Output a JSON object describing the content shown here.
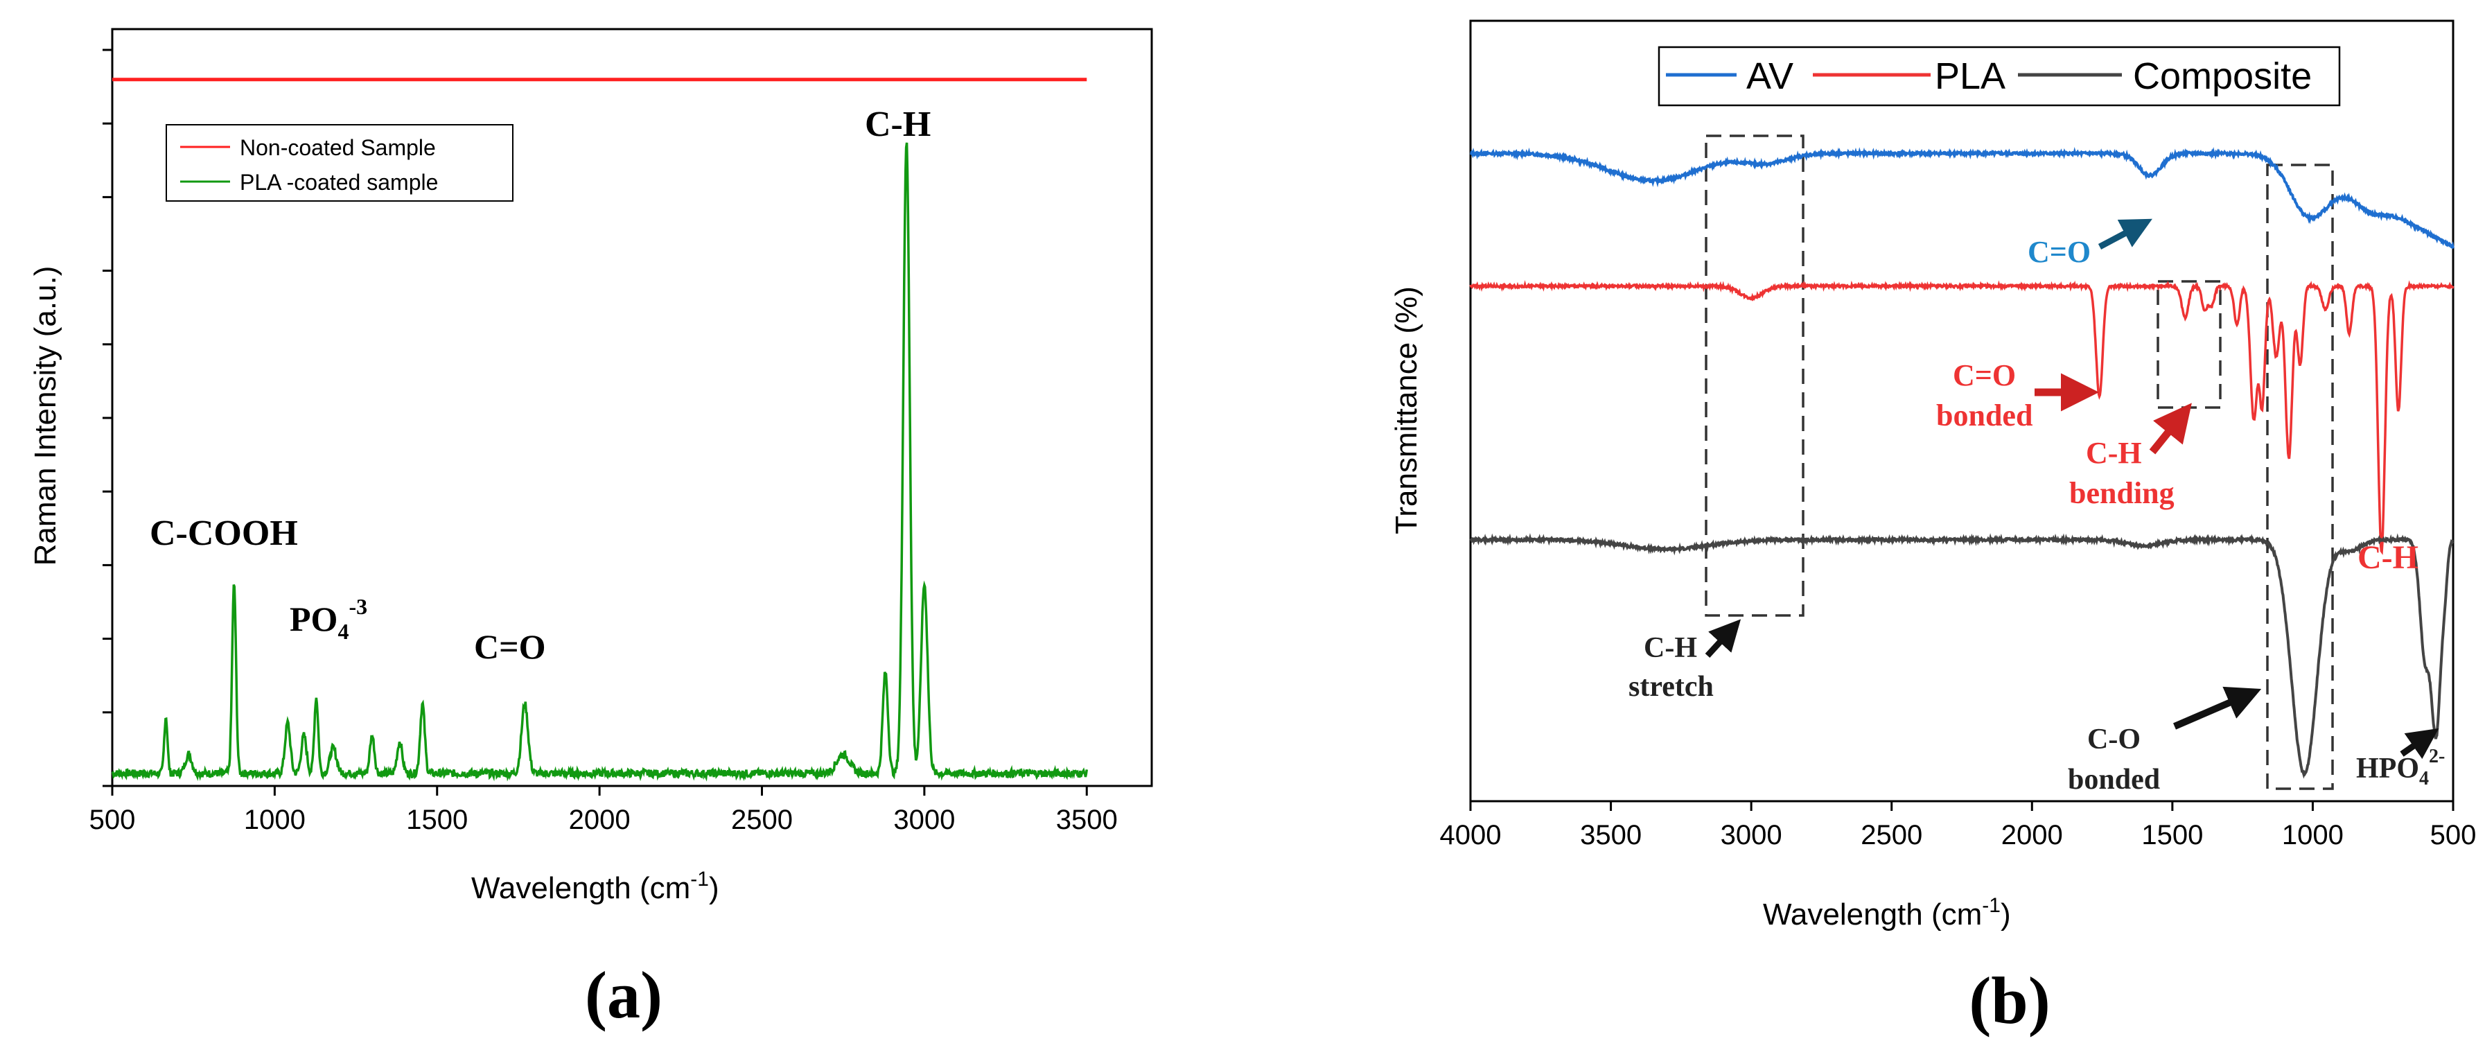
{
  "panel_a_label": "(a)",
  "panel_b_label": "(b)",
  "chart_data": [
    {
      "type": "line",
      "panel": "a",
      "title": "",
      "xlabel": "Wavelength (cm",
      "xlabel_sup": "-1",
      "xlabel_end": ")",
      "ylabel": "Raman Intensity (a.u.)",
      "xlim": [
        500,
        3700
      ],
      "xticks": [
        500,
        1000,
        1500,
        2000,
        2500,
        3000,
        3500
      ],
      "xtick_labels": [
        "500",
        "1000",
        "1500",
        "2000",
        "2500",
        "3000",
        "3500"
      ],
      "ylim": [
        0,
        1.2
      ],
      "y_tick_count": 10,
      "legend": {
        "position": "top-left",
        "entries": [
          {
            "name": "Non-coated Sample",
            "color": "#ff2020"
          },
          {
            "name": "PLA -coated sample",
            "color": "#119911"
          }
        ]
      },
      "series": [
        {
          "name": "Non-coated Sample",
          "color": "#ff2020",
          "x": [
            500,
            3500
          ],
          "y": [
            1.12,
            1.12
          ]
        },
        {
          "name": "PLA -coated sample",
          "color": "#119911",
          "baseline": 0.02,
          "x_range": [
            500,
            3500
          ],
          "peaks": [
            {
              "x": 665,
              "h": 0.09,
              "w": 5
            },
            {
              "x": 735,
              "h": 0.03,
              "w": 10
            },
            {
              "x": 875,
              "h": 0.3,
              "w": 6
            },
            {
              "x": 1040,
              "h": 0.08,
              "w": 8
            },
            {
              "x": 1090,
              "h": 0.06,
              "w": 8
            },
            {
              "x": 1128,
              "h": 0.12,
              "w": 6
            },
            {
              "x": 1180,
              "h": 0.04,
              "w": 10
            },
            {
              "x": 1300,
              "h": 0.06,
              "w": 7
            },
            {
              "x": 1385,
              "h": 0.05,
              "w": 8
            },
            {
              "x": 1455,
              "h": 0.11,
              "w": 7
            },
            {
              "x": 1770,
              "h": 0.11,
              "w": 10
            },
            {
              "x": 2750,
              "h": 0.03,
              "w": 20
            },
            {
              "x": 2880,
              "h": 0.16,
              "w": 8
            },
            {
              "x": 2945,
              "h": 1.0,
              "w": 10
            },
            {
              "x": 3000,
              "h": 0.3,
              "w": 10
            }
          ]
        }
      ],
      "annotations": [
        {
          "text": "C-COOH"
        },
        {
          "text": "PO",
          "sub": "4",
          "sup": "-3"
        },
        {
          "text": "C=O"
        },
        {
          "text": "C-H"
        }
      ]
    },
    {
      "type": "line",
      "panel": "b",
      "title": "",
      "xlabel": "Wavelength (cm",
      "xlabel_sup": "-1",
      "xlabel_end": ")",
      "ylabel": "Transmittance (%)",
      "xlim": [
        4000,
        500
      ],
      "xticks": [
        4000,
        3500,
        3000,
        2500,
        2000,
        1500,
        1000,
        500
      ],
      "xtick_labels": [
        "4000",
        "3500",
        "3000",
        "2500",
        "2000",
        "1500",
        "1000",
        "500"
      ],
      "ylim": [
        0,
        100
      ],
      "legend": {
        "position": "top",
        "entries": [
          {
            "name": "AV",
            "color": "#1f6fd0"
          },
          {
            "name": "PLA",
            "color": "#ee3333"
          },
          {
            "name": "Composite",
            "color": "#444444"
          }
        ]
      },
      "series": [
        {
          "name": "AV",
          "color": "#1f6fd0",
          "baseline": 83,
          "slope_start": 1100,
          "slope_end": 500,
          "slope_drop": 12,
          "dips": [
            {
              "x": 3350,
              "d": 3.5,
              "w": 160
            },
            {
              "x": 2950,
              "d": 1.2,
              "w": 80
            },
            {
              "x": 1580,
              "d": 2.8,
              "w": 40
            },
            {
              "x": 1020,
              "d": 6.5,
              "w": 70
            },
            {
              "x": 800,
              "d": 1.5,
              "w": 50
            }
          ]
        },
        {
          "name": "PLA",
          "color": "#ee3333",
          "baseline": 66,
          "dips": [
            {
              "x": 3000,
              "d": 1.5,
              "w": 40
            },
            {
              "x": 1760,
              "d": 14,
              "w": 12
            },
            {
              "x": 1455,
              "d": 4,
              "w": 12
            },
            {
              "x": 1385,
              "d": 3,
              "w": 10
            },
            {
              "x": 1360,
              "d": 2.5,
              "w": 10
            },
            {
              "x": 1270,
              "d": 5,
              "w": 10
            },
            {
              "x": 1210,
              "d": 17,
              "w": 12
            },
            {
              "x": 1180,
              "d": 15,
              "w": 10
            },
            {
              "x": 1130,
              "d": 9,
              "w": 12
            },
            {
              "x": 1085,
              "d": 22,
              "w": 12
            },
            {
              "x": 1045,
              "d": 10,
              "w": 10
            },
            {
              "x": 955,
              "d": 3,
              "w": 12
            },
            {
              "x": 870,
              "d": 6,
              "w": 10
            },
            {
              "x": 755,
              "d": 34,
              "w": 12
            },
            {
              "x": 695,
              "d": 16,
              "w": 10
            }
          ]
        },
        {
          "name": "Composite",
          "color": "#444444",
          "baseline": 33.5,
          "dips": [
            {
              "x": 3300,
              "d": 1.2,
              "w": 150
            },
            {
              "x": 1600,
              "d": 0.8,
              "w": 60
            },
            {
              "x": 1030,
              "d": 30,
              "w": 45
            },
            {
              "x": 870,
              "d": 1.5,
              "w": 40
            },
            {
              "x": 600,
              "d": 15,
              "w": 18
            },
            {
              "x": 560,
              "d": 24,
              "w": 16
            },
            {
              "x": 530,
              "d": 5,
              "w": 10
            }
          ]
        }
      ],
      "annotations": [
        {
          "text": "C=O",
          "color": "#1f88cc"
        },
        {
          "text": "C=O",
          "color": "#ee3333"
        },
        {
          "text": "bonded",
          "color": "#ee3333"
        },
        {
          "text": "C-H",
          "color": "#ee3333"
        },
        {
          "text": "bending",
          "color": "#ee3333"
        },
        {
          "text": "C-H",
          "color": "#ee3333"
        },
        {
          "text": "C-H",
          "color": "#222222"
        },
        {
          "text": "stretch",
          "color": "#222222"
        },
        {
          "text": "C-O",
          "color": "#222222"
        },
        {
          "text": "bonded",
          "color": "#222222"
        },
        {
          "text": "HPO",
          "sub": "4",
          "sup": "2-",
          "color": "#222222"
        }
      ]
    }
  ]
}
